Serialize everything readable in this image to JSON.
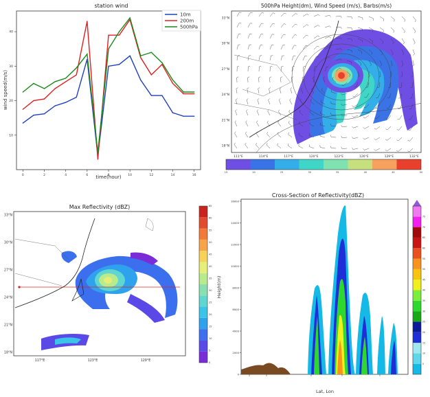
{
  "chart_data": [
    {
      "type": "line",
      "title": "station wind",
      "xlabel": "time(hour)",
      "ylabel": "wind speed(m/s)",
      "x": [
        0,
        1,
        2,
        3,
        4,
        5,
        6,
        7,
        8,
        9,
        10,
        11,
        12,
        13,
        14,
        15,
        16
      ],
      "xticks": [
        0,
        2,
        4,
        6,
        8,
        10,
        12,
        14,
        16
      ],
      "yticks": [
        10,
        20,
        30,
        40
      ],
      "ylim": [
        0,
        46
      ],
      "xlim": [
        -0.6,
        16.6
      ],
      "legend_position": "top-right",
      "series": [
        {
          "name": "10m",
          "color": "#1f3fbf",
          "values": [
            13.5,
            15.8,
            16.2,
            18.5,
            19.5,
            21,
            32,
            4,
            30,
            30.5,
            33,
            26,
            21.5,
            21.5,
            16.5,
            15.5,
            15.5
          ]
        },
        {
          "name": "200m",
          "color": "#e02020",
          "values": [
            17.5,
            20,
            20.5,
            23.5,
            25.5,
            27.5,
            43,
            3,
            39,
            39,
            43.5,
            32.5,
            27.5,
            30.5,
            25,
            22,
            22
          ]
        },
        {
          "name": "500hPa",
          "color": "#1a8a1a",
          "values": [
            22.5,
            25,
            23.5,
            25.5,
            26.5,
            29.5,
            33.5,
            5,
            35,
            40,
            44,
            33,
            34,
            31,
            26,
            22.5,
            22.5
          ]
        }
      ]
    },
    {
      "type": "heatmap",
      "title": "500hPa Height(dm), Wind Speed (m/s), Barbs(m/s)",
      "lat_ticks": [
        "18°N",
        "21°N",
        "24°N",
        "27°N",
        "30°N",
        "33°N"
      ],
      "lon_ticks": [
        "111°E",
        "114°E",
        "117°E",
        "120°E",
        "123°E",
        "126°E",
        "129°E",
        "132°E"
      ],
      "colorbar_values": [
        "15",
        "20",
        "25",
        "30",
        "35",
        "40",
        "45",
        "50"
      ],
      "colorbar_colors": [
        "#6f4fe3",
        "#3a73e6",
        "#33aee8",
        "#3fd6c8",
        "#7ee3b0",
        "#c6e07f",
        "#f6a15e",
        "#e8402d"
      ]
    },
    {
      "type": "heatmap",
      "title": "Max Reflectivity (dBZ)",
      "lat_ticks": [
        "18°N",
        "21°N",
        "24°N",
        "27°N",
        "30°N",
        "33°N"
      ],
      "lon_ticks": [
        "117°E",
        "123°E",
        "129°E"
      ],
      "colorbar_values": [
        "0",
        "5",
        "10",
        "15",
        "20",
        "25",
        "30",
        "35",
        "40",
        "45",
        "50",
        "55",
        "60",
        "65"
      ],
      "colorbar_colors": [
        "#7a2cd8",
        "#5a49e6",
        "#3c6fee",
        "#2fa2ee",
        "#3cc4e8",
        "#5fd6d0",
        "#88e0b0",
        "#b8ea8e",
        "#e4ee78",
        "#f7d25a",
        "#f7a448",
        "#f17a3a",
        "#e24a2e",
        "#c8231f"
      ]
    },
    {
      "type": "heatmap",
      "title": "Cross-Section of Reflectivity(dBZ)",
      "xlabel": "Lat, Lon",
      "ylabel": "Height(m)",
      "yticks": [
        "0",
        "2000",
        "4000",
        "6000",
        "8000",
        "10000",
        "12000",
        "14000",
        "16000"
      ],
      "colorbar_colors": [
        "#14b9e6",
        "#5fd6ea",
        "#a0e8f0",
        "#1e2fd8",
        "#0c1a9a",
        "#18a818",
        "#2fd82f",
        "#7aee3a",
        "#f0f01e",
        "#f7c40f",
        "#f7941e",
        "#e8501e",
        "#c81414",
        "#a00a0a",
        "#f020f0",
        "#f078f0"
      ],
      "colorbar_values": [
        "5",
        "10",
        "15",
        "20",
        "25",
        "30",
        "35",
        "40",
        "45",
        "50",
        "55",
        "60",
        "65",
        "70",
        "75"
      ]
    }
  ]
}
